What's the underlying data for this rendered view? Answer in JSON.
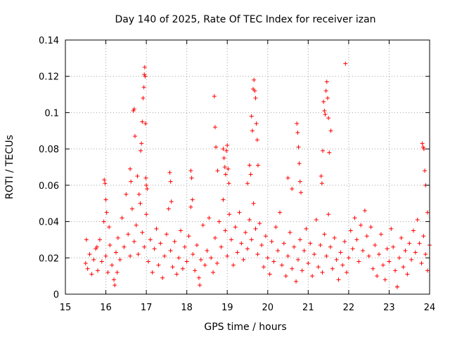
{
  "chart_data": {
    "type": "scatter",
    "title": "Day 140 of 2025, Rate Of TEC Index for receiver izan",
    "xlabel": "GPS time / hours",
    "ylabel": "ROTI / TECUs",
    "xlim": [
      15,
      24
    ],
    "ylim": [
      0,
      0.14
    ],
    "x_ticks": [
      15,
      16,
      17,
      18,
      19,
      20,
      21,
      22,
      23,
      24
    ],
    "y_ticks": [
      0,
      0.02,
      0.04,
      0.06,
      0.08,
      0.1,
      0.12,
      0.14
    ],
    "x_tick_labels": [
      "15",
      "16",
      "17",
      "18",
      "19",
      "20",
      "21",
      "22",
      "23",
      "24"
    ],
    "y_tick_labels": [
      "0",
      "0.02",
      "0.04",
      "0.06",
      "0.08",
      "0.1",
      "0.12",
      "0.14"
    ],
    "grid": true,
    "marker": "+",
    "color": "#ff0000",
    "series": [
      {
        "name": "ROTI",
        "points": [
          [
            15.5,
            0.017
          ],
          [
            15.55,
            0.014
          ],
          [
            15.6,
            0.022
          ],
          [
            15.65,
            0.011
          ],
          [
            15.7,
            0.019
          ],
          [
            15.75,
            0.025
          ],
          [
            15.8,
            0.013
          ],
          [
            15.85,
            0.03
          ],
          [
            15.9,
            0.018
          ],
          [
            15.95,
            0.04
          ],
          [
            16.0,
            0.021
          ],
          [
            16.05,
            0.012
          ],
          [
            16.1,
            0.027
          ],
          [
            16.15,
            0.016
          ],
          [
            16.2,
            0.008
          ],
          [
            16.25,
            0.023
          ],
          [
            16.3,
            0.031
          ],
          [
            16.35,
            0.019
          ],
          [
            16.4,
            0.042
          ],
          [
            16.45,
            0.026
          ],
          [
            16.5,
            0.055
          ],
          [
            16.55,
            0.033
          ],
          [
            16.6,
            0.021
          ],
          [
            16.65,
            0.047
          ],
          [
            16.7,
            0.029
          ],
          [
            16.75,
            0.038
          ],
          [
            16.8,
            0.022
          ],
          [
            16.85,
            0.05
          ],
          [
            16.9,
            0.034
          ],
          [
            16.95,
            0.026
          ],
          [
            17.0,
            0.044
          ],
          [
            17.05,
            0.018
          ],
          [
            17.1,
            0.03
          ],
          [
            17.15,
            0.012
          ],
          [
            17.2,
            0.025
          ],
          [
            17.25,
            0.036
          ],
          [
            17.3,
            0.016
          ],
          [
            17.35,
            0.028
          ],
          [
            17.4,
            0.009
          ],
          [
            17.45,
            0.021
          ],
          [
            17.5,
            0.033
          ],
          [
            17.55,
            0.047
          ],
          [
            17.6,
            0.024
          ],
          [
            17.65,
            0.015
          ],
          [
            17.7,
            0.029
          ],
          [
            17.75,
            0.011
          ],
          [
            17.8,
            0.02
          ],
          [
            17.85,
            0.035
          ],
          [
            17.9,
            0.014
          ],
          [
            17.95,
            0.026
          ],
          [
            18.0,
            0.018
          ],
          [
            18.05,
            0.032
          ],
          [
            18.1,
            0.048
          ],
          [
            18.15,
            0.022
          ],
          [
            18.2,
            0.013
          ],
          [
            18.25,
            0.027
          ],
          [
            18.3,
            0.009
          ],
          [
            18.35,
            0.019
          ],
          [
            18.4,
            0.038
          ],
          [
            18.45,
            0.016
          ],
          [
            18.5,
            0.024
          ],
          [
            18.55,
            0.042
          ],
          [
            18.6,
            0.02
          ],
          [
            18.65,
            0.012
          ],
          [
            18.7,
            0.031
          ],
          [
            18.75,
            0.017
          ],
          [
            18.8,
            0.04
          ],
          [
            18.85,
            0.026
          ],
          [
            18.9,
            0.052
          ],
          [
            18.95,
            0.035
          ],
          [
            19.0,
            0.021
          ],
          [
            19.05,
            0.044
          ],
          [
            19.1,
            0.03
          ],
          [
            19.15,
            0.016
          ],
          [
            19.2,
            0.037
          ],
          [
            19.25,
            0.023
          ],
          [
            19.3,
            0.045
          ],
          [
            19.35,
            0.028
          ],
          [
            19.4,
            0.019
          ],
          [
            19.45,
            0.034
          ],
          [
            19.5,
            0.025
          ],
          [
            19.55,
            0.041
          ],
          [
            19.6,
            0.03
          ],
          [
            19.65,
            0.05
          ],
          [
            19.7,
            0.036
          ],
          [
            19.75,
            0.022
          ],
          [
            19.8,
            0.039
          ],
          [
            19.85,
            0.027
          ],
          [
            19.9,
            0.015
          ],
          [
            19.95,
            0.032
          ],
          [
            20.0,
            0.02
          ],
          [
            20.05,
            0.011
          ],
          [
            20.1,
            0.029
          ],
          [
            20.15,
            0.018
          ],
          [
            20.2,
            0.037
          ],
          [
            20.25,
            0.024
          ],
          [
            20.3,
            0.045
          ],
          [
            20.35,
            0.016
          ],
          [
            20.4,
            0.028
          ],
          [
            20.45,
            0.01
          ],
          [
            20.5,
            0.021
          ],
          [
            20.55,
            0.034
          ],
          [
            20.6,
            0.014
          ],
          [
            20.65,
            0.026
          ],
          [
            20.7,
            0.007
          ],
          [
            20.75,
            0.019
          ],
          [
            20.8,
            0.03
          ],
          [
            20.85,
            0.013
          ],
          [
            20.9,
            0.024
          ],
          [
            20.95,
            0.036
          ],
          [
            21.0,
            0.017
          ],
          [
            21.05,
            0.028
          ],
          [
            21.1,
            0.01
          ],
          [
            21.15,
            0.022
          ],
          [
            21.2,
            0.041
          ],
          [
            21.25,
            0.015
          ],
          [
            21.3,
            0.027
          ],
          [
            21.35,
            0.012
          ],
          [
            21.4,
            0.033
          ],
          [
            21.45,
            0.021
          ],
          [
            21.5,
            0.044
          ],
          [
            21.55,
            0.026
          ],
          [
            21.6,
            0.014
          ],
          [
            21.65,
            0.031
          ],
          [
            21.7,
            0.019
          ],
          [
            21.75,
            0.008
          ],
          [
            21.8,
            0.023
          ],
          [
            21.85,
            0.016
          ],
          [
            21.9,
            0.029
          ],
          [
            21.95,
            0.012
          ],
          [
            22.0,
            0.02
          ],
          [
            22.05,
            0.035
          ],
          [
            22.1,
            0.025
          ],
          [
            22.15,
            0.042
          ],
          [
            22.2,
            0.03
          ],
          [
            22.25,
            0.018
          ],
          [
            22.3,
            0.038
          ],
          [
            22.35,
            0.024
          ],
          [
            22.4,
            0.046
          ],
          [
            22.45,
            0.032
          ],
          [
            22.5,
            0.021
          ],
          [
            22.55,
            0.037
          ],
          [
            22.6,
            0.014
          ],
          [
            22.65,
            0.027
          ],
          [
            22.7,
            0.01
          ],
          [
            22.75,
            0.022
          ],
          [
            22.8,
            0.033
          ],
          [
            22.85,
            0.016
          ],
          [
            22.9,
            0.008
          ],
          [
            22.95,
            0.025
          ],
          [
            23.0,
            0.018
          ],
          [
            23.05,
            0.036
          ],
          [
            23.1,
            0.026
          ],
          [
            23.15,
            0.013
          ],
          [
            23.2,
            0.004
          ],
          [
            23.25,
            0.02
          ],
          [
            23.3,
            0.031
          ],
          [
            23.35,
            0.015
          ],
          [
            23.4,
            0.024
          ],
          [
            23.45,
            0.011
          ],
          [
            23.5,
            0.028
          ],
          [
            23.55,
            0.019
          ],
          [
            23.6,
            0.035
          ],
          [
            23.65,
            0.023
          ],
          [
            23.7,
            0.041
          ],
          [
            23.75,
            0.028
          ],
          [
            23.8,
            0.017
          ],
          [
            23.85,
            0.032
          ],
          [
            23.9,
            0.022
          ],
          [
            23.95,
            0.013
          ],
          [
            24.0,
            0.027
          ],
          [
            15.52,
            0.03
          ],
          [
            15.78,
            0.026
          ],
          [
            15.96,
            0.063
          ],
          [
            15.98,
            0.061
          ],
          [
            16.0,
            0.052
          ],
          [
            16.02,
            0.045
          ],
          [
            16.08,
            0.037
          ],
          [
            16.22,
            0.005
          ],
          [
            16.28,
            0.012
          ],
          [
            16.6,
            0.069
          ],
          [
            16.62,
            0.062
          ],
          [
            16.68,
            0.101
          ],
          [
            16.7,
            0.102
          ],
          [
            16.72,
            0.087
          ],
          [
            16.78,
            0.065
          ],
          [
            16.82,
            0.055
          ],
          [
            16.86,
            0.079
          ],
          [
            16.88,
            0.083
          ],
          [
            16.9,
            0.095
          ],
          [
            16.92,
            0.108
          ],
          [
            16.94,
            0.114
          ],
          [
            16.95,
            0.121
          ],
          [
            16.96,
            0.125
          ],
          [
            16.97,
            0.12
          ],
          [
            16.98,
            0.094
          ],
          [
            16.99,
            0.064
          ],
          [
            17.0,
            0.06
          ],
          [
            17.02,
            0.058
          ],
          [
            17.58,
            0.067
          ],
          [
            17.6,
            0.062
          ],
          [
            17.62,
            0.051
          ],
          [
            18.1,
            0.068
          ],
          [
            18.12,
            0.064
          ],
          [
            18.14,
            0.052
          ],
          [
            18.32,
            0.005
          ],
          [
            18.68,
            0.109
          ],
          [
            18.7,
            0.092
          ],
          [
            18.72,
            0.081
          ],
          [
            18.76,
            0.068
          ],
          [
            18.9,
            0.08
          ],
          [
            18.92,
            0.075
          ],
          [
            18.94,
            0.07
          ],
          [
            18.96,
            0.066
          ],
          [
            18.98,
            0.079
          ],
          [
            19.0,
            0.082
          ],
          [
            19.02,
            0.069
          ],
          [
            19.04,
            0.061
          ],
          [
            19.6,
            0.098
          ],
          [
            19.62,
            0.09
          ],
          [
            19.64,
            0.113
          ],
          [
            19.66,
            0.118
          ],
          [
            19.68,
            0.112
          ],
          [
            19.7,
            0.108
          ],
          [
            19.72,
            0.094
          ],
          [
            19.74,
            0.085
          ],
          [
            19.76,
            0.071
          ],
          [
            19.5,
            0.061
          ],
          [
            19.55,
            0.071
          ],
          [
            19.58,
            0.066
          ],
          [
            20.72,
            0.094
          ],
          [
            20.74,
            0.089
          ],
          [
            20.76,
            0.081
          ],
          [
            20.78,
            0.072
          ],
          [
            20.8,
            0.062
          ],
          [
            20.82,
            0.056
          ],
          [
            20.5,
            0.064
          ],
          [
            20.6,
            0.058
          ],
          [
            21.38,
            0.106
          ],
          [
            21.4,
            0.101
          ],
          [
            21.42,
            0.099
          ],
          [
            21.44,
            0.112
          ],
          [
            21.46,
            0.117
          ],
          [
            21.48,
            0.108
          ],
          [
            21.5,
            0.097
          ],
          [
            21.52,
            0.078
          ],
          [
            21.36,
            0.079
          ],
          [
            21.32,
            0.065
          ],
          [
            21.34,
            0.061
          ],
          [
            21.92,
            0.127
          ],
          [
            21.56,
            0.09
          ],
          [
            23.82,
            0.083
          ],
          [
            23.84,
            0.081
          ],
          [
            23.86,
            0.08
          ],
          [
            23.88,
            0.068
          ],
          [
            23.9,
            0.06
          ],
          [
            23.2,
            0.004
          ],
          [
            23.95,
            0.045
          ]
        ]
      }
    ]
  }
}
